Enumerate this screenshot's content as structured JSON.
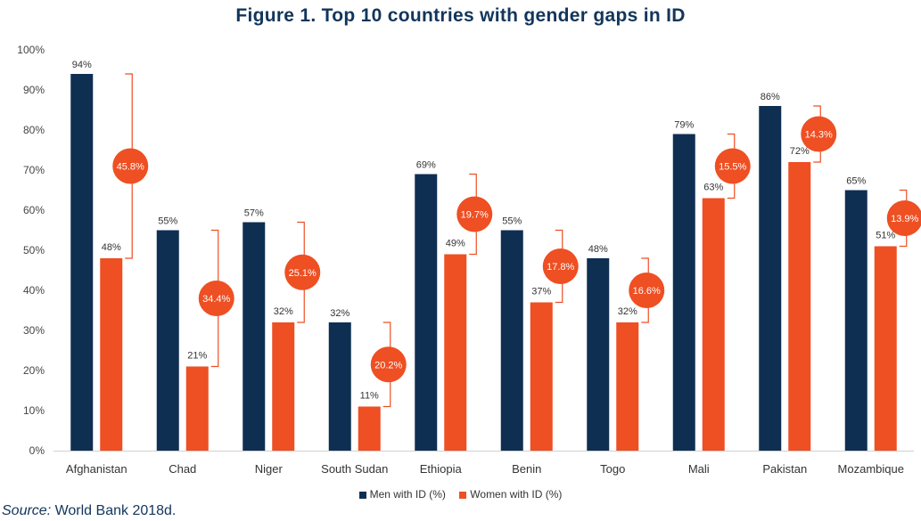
{
  "title": "Figure 1. Top 10 countries with gender gaps in ID",
  "source_prefix": "Source:",
  "source_text": " World Bank 2018d.",
  "colors": {
    "men": "#0f2f52",
    "women": "#ee4f23",
    "bracket": "#ee4f23"
  },
  "chart_data": {
    "type": "bar",
    "title": "Figure 1. Top 10 countries with gender gaps in ID",
    "categories": [
      "Afghanistan",
      "Chad",
      "Niger",
      "South Sudan",
      "Ethiopia",
      "Benin",
      "Togo",
      "Mali",
      "Pakistan",
      "Mozambique"
    ],
    "series": [
      {
        "name": "Men with ID (%)",
        "values": [
          94,
          55,
          57,
          32,
          69,
          55,
          48,
          79,
          86,
          65
        ],
        "labels": [
          "94%",
          "55%",
          "57%",
          "32%",
          "69%",
          "55%",
          "48%",
          "79%",
          "86%",
          "65%"
        ]
      },
      {
        "name": "Women with ID (%)",
        "values": [
          48,
          21,
          32,
          11,
          49,
          37,
          32,
          63,
          72,
          51
        ],
        "labels": [
          "48%",
          "21%",
          "32%",
          "11%",
          "49%",
          "37%",
          "32%",
          "63%",
          "72%",
          "51%"
        ]
      }
    ],
    "gaps": [
      "45.8%",
      "34.4%",
      "25.1%",
      "20.2%",
      "19.7%",
      "17.8%",
      "16.6%",
      "15.5%",
      "14.3%",
      "13.9%"
    ],
    "ylim": [
      0,
      100
    ],
    "yticks": [
      "0%",
      "10%",
      "20%",
      "30%",
      "40%",
      "50%",
      "60%",
      "70%",
      "80%",
      "90%",
      "100%"
    ],
    "xlabel": "",
    "ylabel": "",
    "legend_position": "bottom-center",
    "grid": false
  }
}
